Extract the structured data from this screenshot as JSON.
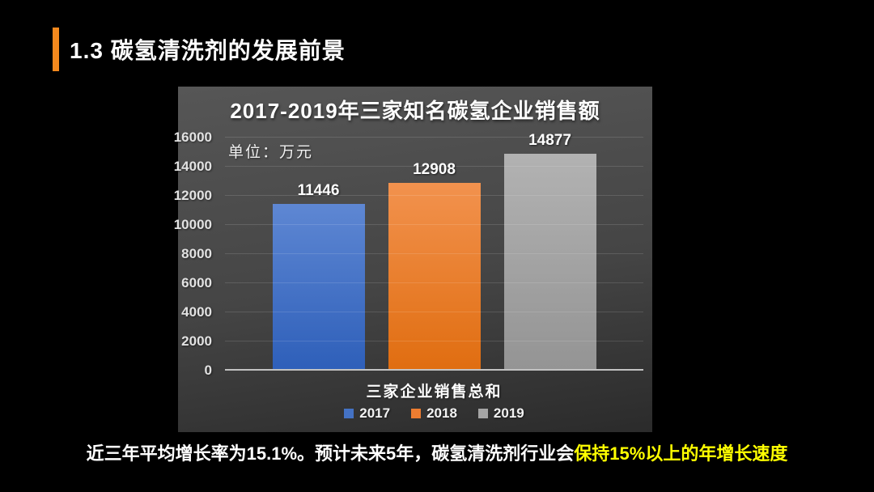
{
  "header": {
    "title": "1.3 碳氢清洗剂的发展前景"
  },
  "chart_data": {
    "type": "bar",
    "title": "2017-2019年三家知名碳氢企业销售额",
    "unit_label": "单位：万元",
    "categories": [
      "三家企业销售总和"
    ],
    "series": [
      {
        "name": "2017",
        "values": [
          11446
        ],
        "color": "#4472C4",
        "gradient": [
          "#5e87d3",
          "#2e5fb9"
        ]
      },
      {
        "name": "2018",
        "values": [
          12908
        ],
        "color": "#ED7D31",
        "gradient": [
          "#f2924e",
          "#e06d10"
        ]
      },
      {
        "name": "2019",
        "values": [
          14877
        ],
        "color": "#A5A5A5",
        "gradient": [
          "#b2b2b2",
          "#949494"
        ]
      }
    ],
    "ylim": [
      0,
      16000
    ],
    "ytick_step": 2000,
    "grid": true,
    "legend_position": "bottom",
    "xlabel": "三家企业销售总和",
    "ylabel": ""
  },
  "caption": {
    "normal_text": "近三年平均增长率为15.1%。预计未来5年，碳氢清洗剂行业会",
    "highlight_text": "保持15%以上的年增长速度",
    "highlight_color": "#FFFF00"
  },
  "colors": {
    "slide_background": "#000000",
    "accent_bar": "#F5891D",
    "chart_panel_top": "#565656",
    "chart_panel_mid": "#454545",
    "chart_panel_bottom": "#2b2b2b"
  }
}
